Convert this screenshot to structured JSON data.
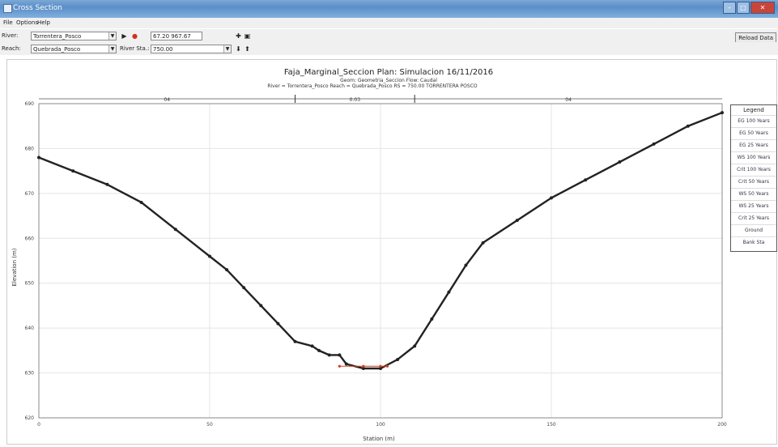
{
  "window": {
    "title": "Cross Section"
  },
  "menu": {
    "file": "File",
    "options": "Options",
    "help": "Help"
  },
  "toolbar": {
    "river_label": "River:",
    "river_value": "Torrentera_Posco",
    "reach_label": "Reach:",
    "reach_value": "Quebrada_Posco",
    "river_sta_label": "River Sta.:",
    "river_sta_value": "750.00",
    "plan_field": "67.20 967.67",
    "reload_label": "Reload Data"
  },
  "colors": {
    "ground": "#222222",
    "wse": "#d04020"
  },
  "chart_data": {
    "type": "scatter",
    "title": "Faja_Marginal_Seccion      Plan: Simulacion    16/11/2016",
    "subtitle_1": "Geom: Geometria_Seccion    Flow: Caudal",
    "subtitle_2": "River = Torrentera_Posco    Reach = Quebrada_Posco    RS = 750.00    TORRENTERA POSCO",
    "xlabel": "Station (m)",
    "ylabel": "Elevation (m)",
    "xlim": [
      0,
      200
    ],
    "ylim": [
      620,
      690
    ],
    "x_ticks": [
      "0",
      "50",
      "100",
      "150",
      "200"
    ],
    "y_ticks": [
      "620",
      "630",
      "640",
      "650",
      "660",
      "670",
      "680",
      "690"
    ],
    "manning_labels": [
      "04",
      "0.03",
      "04"
    ],
    "bank_stations": [
      75,
      110
    ],
    "series": [
      {
        "name": "Ground",
        "x": [
          0,
          10,
          20,
          30,
          40,
          50,
          55,
          60,
          65,
          70,
          75,
          80,
          82,
          85,
          88,
          90,
          95,
          100,
          105,
          110,
          115,
          120,
          125,
          130,
          140,
          150,
          160,
          170,
          180,
          190,
          200
        ],
        "y": [
          678,
          675,
          672,
          668,
          662,
          656,
          653,
          649,
          645,
          641,
          637,
          636,
          635,
          634,
          634,
          632,
          631,
          631,
          633,
          636,
          642,
          648,
          654,
          659,
          664,
          669,
          673,
          677,
          681,
          685,
          688
        ]
      },
      {
        "name": "WS 100 Years",
        "x": [
          88,
          95,
          100,
          102
        ],
        "y": [
          631.5,
          631.5,
          631.5,
          631.5
        ]
      }
    ],
    "legend": {
      "title": "Legend",
      "entries": [
        "EG 100 Years",
        "EG 50 Years",
        "EG 25 Years",
        "WS 100 Years",
        "Crit 100 Years",
        "Crit 50 Years",
        "WS 50 Years",
        "WS 25 Years",
        "Crit 25 Years",
        "Ground",
        "Bank Sta"
      ],
      "position": "right"
    }
  }
}
